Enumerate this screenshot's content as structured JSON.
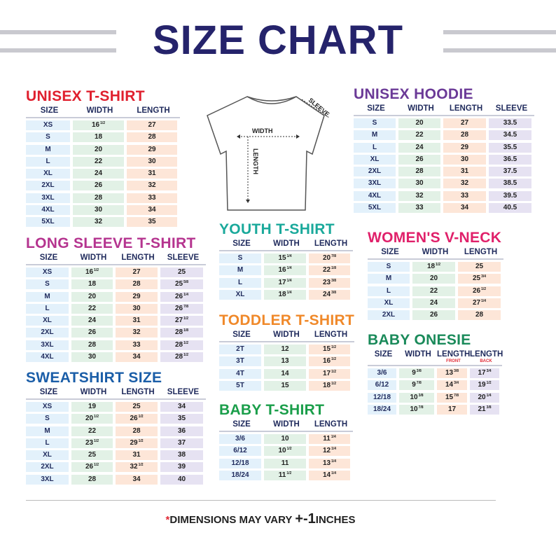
{
  "title": "SIZE CHART",
  "footer": {
    "star": "*",
    "text": "DIMENSIONS MAY VARY",
    "pm": "+-1",
    "unit": "INCHES"
  },
  "diagram": {
    "width": "WIDTH",
    "length": "LENGTH",
    "sleeve": "SLEEVE"
  },
  "colors": {
    "navy": "#25236b",
    "size_cell": "#e3f1fb",
    "width_cell": "#e2f1e6",
    "length_cell": "#fde6d8",
    "sleeve_cell": "#e6e2f2"
  },
  "tables": {
    "unisex_tshirt": {
      "title": "UNISEX T-SHIRT",
      "color": "#e0202e",
      "headers": [
        "SIZE",
        "WIDTH",
        "LENGTH"
      ],
      "rows": [
        [
          "XS",
          "16 1/2",
          "27"
        ],
        [
          "S",
          "18",
          "28"
        ],
        [
          "M",
          "20",
          "29"
        ],
        [
          "L",
          "22",
          "30"
        ],
        [
          "XL",
          "24",
          "31"
        ],
        [
          "2XL",
          "26",
          "32"
        ],
        [
          "3XL",
          "28",
          "33"
        ],
        [
          "4XL",
          "30",
          "34"
        ],
        [
          "5XL",
          "32",
          "35"
        ]
      ]
    },
    "long_sleeve": {
      "title": "LONG SLEEVE T-SHIRT",
      "color": "#b5348f",
      "headers": [
        "SIZE",
        "WIDTH",
        "LENGTH",
        "SLEEVE"
      ],
      "rows": [
        [
          "XS",
          "16 1/2",
          "27",
          "25"
        ],
        [
          "S",
          "18",
          "28",
          "25 5/8"
        ],
        [
          "M",
          "20",
          "29",
          "26 1/4"
        ],
        [
          "L",
          "22",
          "30",
          "26 7/8"
        ],
        [
          "XL",
          "24",
          "31",
          "27 1/2"
        ],
        [
          "2XL",
          "26",
          "32",
          "28 1/8"
        ],
        [
          "3XL",
          "28",
          "33",
          "28 1/2"
        ],
        [
          "4XL",
          "30",
          "34",
          "28 1/2"
        ]
      ]
    },
    "sweatshirt": {
      "title": "SWEATSHIRT SIZE",
      "color": "#1b5ea8",
      "headers": [
        "SIZE",
        "WIDTH",
        "LENGTH",
        "SLEEVE"
      ],
      "rows": [
        [
          "XS",
          "19",
          "25",
          "34"
        ],
        [
          "S",
          "20 1/2",
          "26 1/2",
          "35"
        ],
        [
          "M",
          "22",
          "28",
          "36"
        ],
        [
          "L",
          "23 1/2",
          "29 1/2",
          "37"
        ],
        [
          "XL",
          "25",
          "31",
          "38"
        ],
        [
          "2XL",
          "26 1/2",
          "32 1/2",
          "39"
        ],
        [
          "3XL",
          "28",
          "34",
          "40"
        ]
      ]
    },
    "youth": {
      "title": "YOUTH T-SHIRT",
      "color": "#1aa99b",
      "headers": [
        "SIZE",
        "WIDTH",
        "LENGTH"
      ],
      "rows": [
        [
          "S",
          "15 1/4",
          "20 7/8"
        ],
        [
          "M",
          "16 1/4",
          "22 1/8"
        ],
        [
          "L",
          "17 1/4",
          "23 3/8"
        ],
        [
          "XL",
          "18 1/4",
          "24 3/8"
        ]
      ]
    },
    "toddler": {
      "title": "TODDLER T-SHIRT",
      "color": "#f0892a",
      "headers": [
        "SIZE",
        "WIDTH",
        "LENGTH"
      ],
      "rows": [
        [
          "2T",
          "12",
          "15 1/2"
        ],
        [
          "3T",
          "13",
          "16 1/2"
        ],
        [
          "4T",
          "14",
          "17 1/2"
        ],
        [
          "5T",
          "15",
          "18 1/2"
        ]
      ]
    },
    "baby_tshirt": {
      "title": "BABY T-SHIRT",
      "color": "#1a9e4a",
      "headers": [
        "SIZE",
        "WIDTH",
        "LENGTH"
      ],
      "rows": [
        [
          "3/6",
          "10",
          "11 1/4"
        ],
        [
          "6/12",
          "10 1/2",
          "12 1/4"
        ],
        [
          "12/18",
          "11",
          "13 1/4"
        ],
        [
          "18/24",
          "11 1/2",
          "14 1/4"
        ]
      ]
    },
    "hoodie": {
      "title": "UNISEX HOODIE",
      "color": "#6b3a97",
      "headers": [
        "SIZE",
        "WIDTH",
        "LENGTH",
        "SLEEVE"
      ],
      "rows": [
        [
          "S",
          "20",
          "27",
          "33.5"
        ],
        [
          "M",
          "22",
          "28",
          "34.5"
        ],
        [
          "L",
          "24",
          "29",
          "35.5"
        ],
        [
          "XL",
          "26",
          "30",
          "36.5"
        ],
        [
          "2XL",
          "28",
          "31",
          "37.5"
        ],
        [
          "3XL",
          "30",
          "32",
          "38.5"
        ],
        [
          "4XL",
          "32",
          "33",
          "39.5"
        ],
        [
          "5XL",
          "33",
          "34",
          "40.5"
        ]
      ]
    },
    "womens_vneck": {
      "title": "WOMEN'S V-NECK",
      "color": "#e0206a",
      "headers": [
        "SIZE",
        "WIDTH",
        "LENGTH"
      ],
      "rows": [
        [
          "S",
          "18 1/2",
          "25"
        ],
        [
          "M",
          "20",
          "25 3/4"
        ],
        [
          "L",
          "22",
          "26 1/2"
        ],
        [
          "XL",
          "24",
          "27 1/4"
        ],
        [
          "2XL",
          "26",
          "28"
        ]
      ]
    },
    "baby_onesie": {
      "title": "BABY ONESIE",
      "color": "#1a8a5a",
      "headers": [
        "SIZE",
        "WIDTH",
        "LENGTH",
        "LENGTH"
      ],
      "subheaders": [
        "",
        "",
        "FRONT",
        "BACK"
      ],
      "rows": [
        [
          "3/6",
          "9 3/8",
          "13 3/8",
          "17 3/4"
        ],
        [
          "6/12",
          "9 7/8",
          "14 3/4",
          "19 1/2"
        ],
        [
          "12/18",
          "10 3/8",
          "15 7/8",
          "20 1/4"
        ],
        [
          "18/24",
          "10 7/8",
          "17",
          "21 3/8"
        ]
      ]
    }
  }
}
